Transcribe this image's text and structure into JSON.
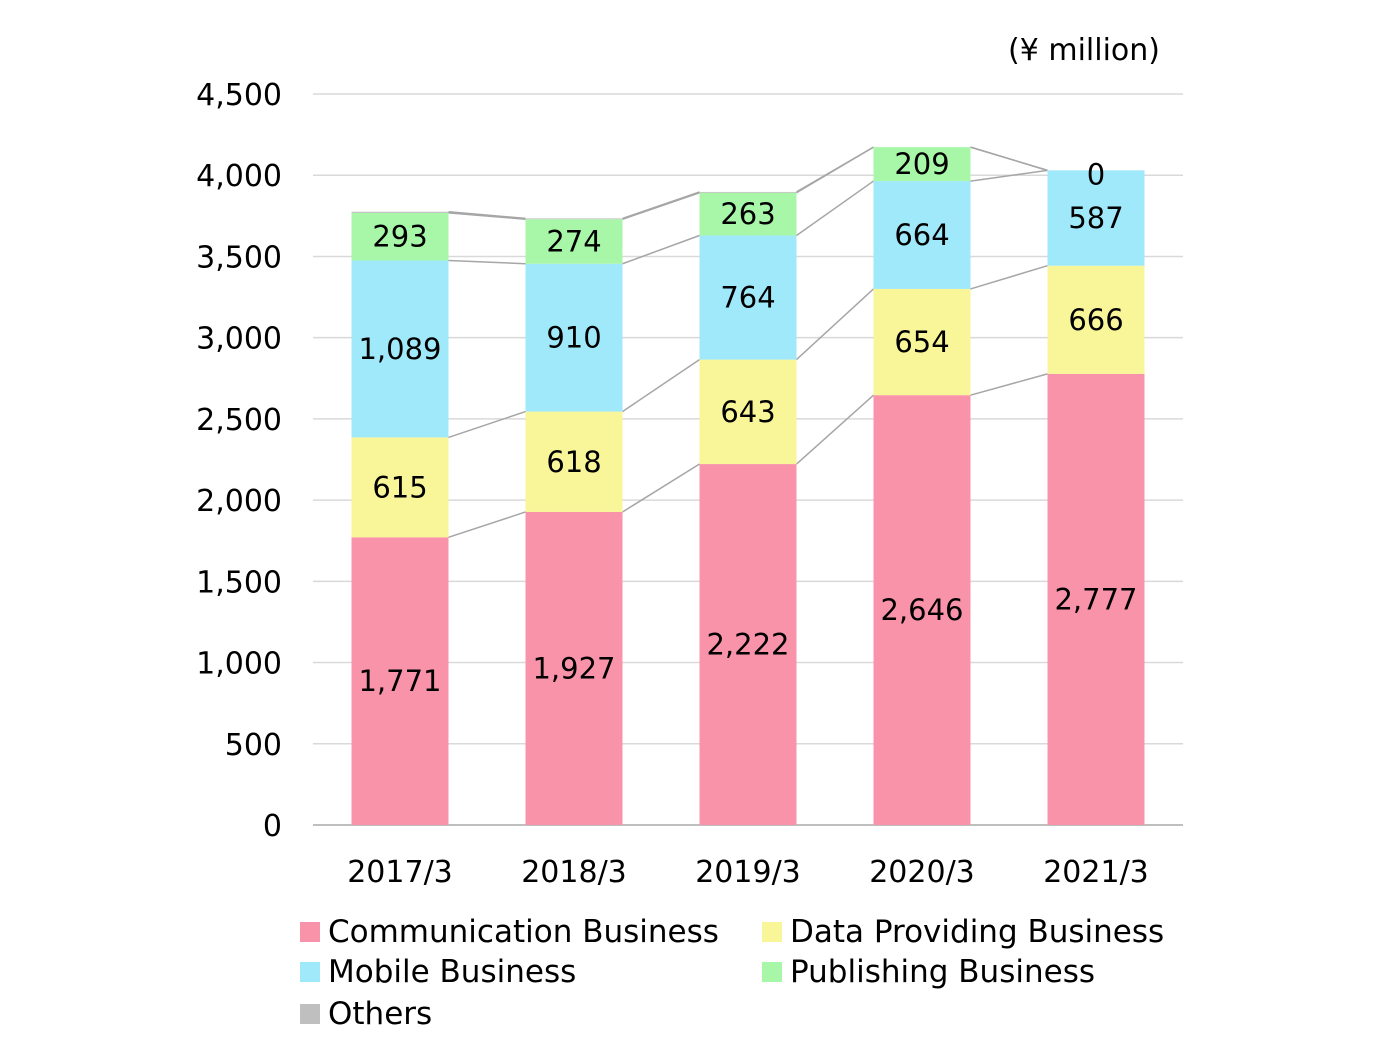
{
  "chart_data": {
    "type": "bar",
    "stacked": true,
    "unit_label": "(¥ million)",
    "categories": [
      "2017/3",
      "2018/3",
      "2019/3",
      "2020/3",
      "2021/3"
    ],
    "series": [
      {
        "name": "Communication Business",
        "color": "#f993aa",
        "values": [
          1771,
          1927,
          2222,
          2646,
          2777
        ],
        "labels": [
          "1,771",
          "1,927",
          "2,222",
          "2,646",
          "2,777"
        ]
      },
      {
        "name": "Data Providing Business",
        "color": "#f9f599",
        "values": [
          615,
          618,
          643,
          654,
          666
        ],
        "labels": [
          "615",
          "618",
          "643",
          "654",
          "666"
        ]
      },
      {
        "name": "Mobile Business",
        "color": "#a0e9fb",
        "values": [
          1089,
          910,
          764,
          664,
          587
        ],
        "labels": [
          "1,089",
          "910",
          "764",
          "664",
          "587"
        ]
      },
      {
        "name": "Publishing Business",
        "color": "#a8f7a8",
        "values": [
          293,
          274,
          263,
          209,
          0
        ],
        "labels": [
          "293",
          "274",
          "263",
          "209",
          "0"
        ]
      },
      {
        "name": "Others",
        "color": "#bfbfbf",
        "values": [
          7,
          5,
          5,
          0,
          0
        ],
        "labels": []
      }
    ],
    "ylim": [
      0,
      4500
    ],
    "yticks": [
      0,
      500,
      1000,
      1500,
      2000,
      2500,
      3000,
      3500,
      4000,
      4500
    ],
    "ytick_labels": [
      "0",
      "500",
      "1,000",
      "1,500",
      "2,000",
      "2,500",
      "3,000",
      "3,500",
      "4,000",
      "4,500"
    ],
    "grid": true,
    "connector_lines": true,
    "legend_position": "bottom"
  }
}
